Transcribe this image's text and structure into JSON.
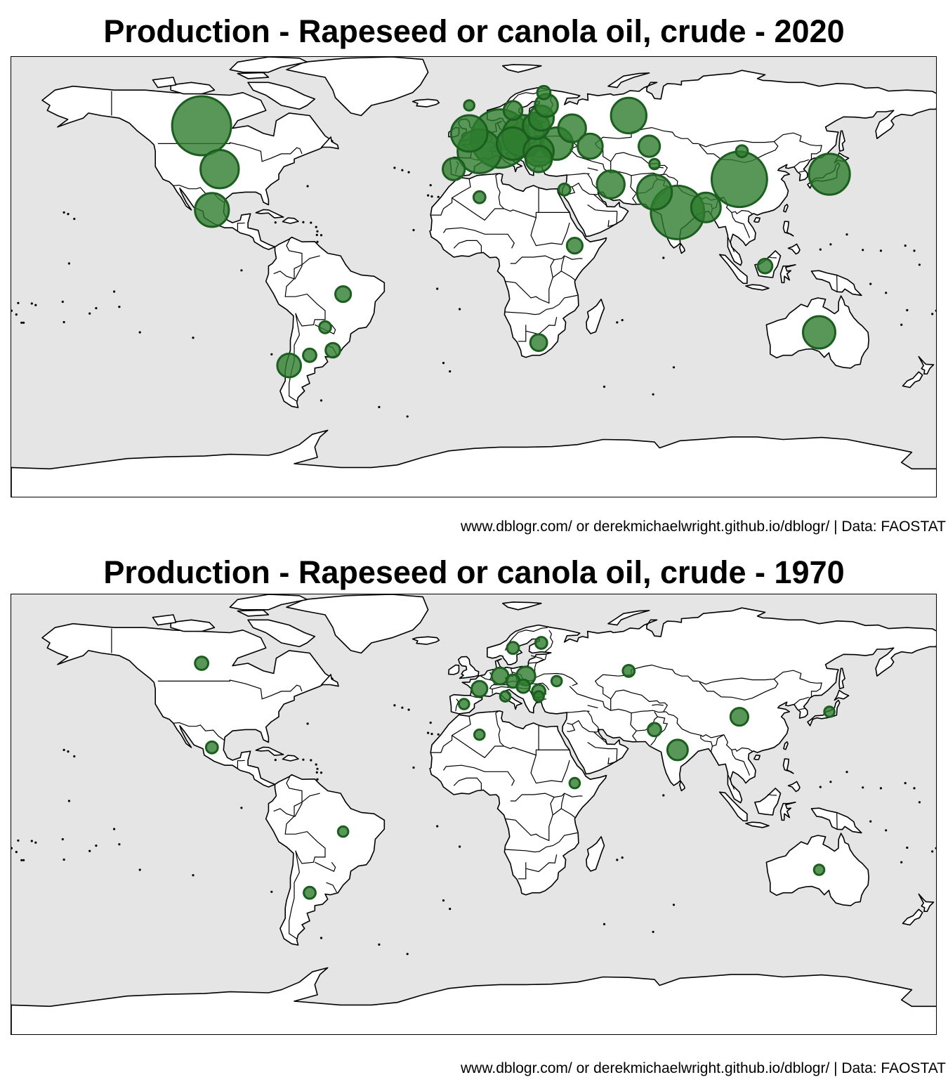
{
  "maps": [
    {
      "title": "Production - Rapeseed or canola oil, crude - 2020",
      "caption": "www.dblogr.com/ or derekmichaelwright.github.io/dblogr/ | Data: FAOSTAT",
      "colors": {
        "ocean": "#e5e5e5",
        "land": "#ffffff",
        "bubble_fill": "#2e7d2e",
        "bubble_stroke": "#1b5e20"
      }
    },
    {
      "title": "Production - Rapeseed or canola oil, crude - 1970",
      "caption": "www.dblogr.com/ or derekmichaelwright.github.io/dblogr/ | Data: FAOSTAT",
      "colors": {
        "ocean": "#e5e5e5",
        "land": "#ffffff",
        "bubble_fill": "#2e7d2e",
        "bubble_stroke": "#1b5e20"
      }
    }
  ],
  "chart_data": [
    {
      "type": "bubble-map",
      "year": "2020",
      "value_note": "relative bubble size (max = 1)",
      "points": [
        {
          "lon": -106,
          "lat": 56,
          "size": 1.0
        },
        {
          "lon": -99,
          "lat": 39,
          "size": 0.42
        },
        {
          "lon": -102,
          "lat": 23,
          "size": 0.33
        },
        {
          "lon": 10,
          "lat": 51,
          "size": 0.98
        },
        {
          "lon": 2,
          "lat": 46,
          "size": 0.55
        },
        {
          "lon": 19,
          "lat": 52,
          "size": 0.5
        },
        {
          "lon": -2,
          "lat": 53,
          "size": 0.38
        },
        {
          "lon": 15,
          "lat": 49,
          "size": 0.3
        },
        {
          "lon": 25,
          "lat": 46,
          "size": 0.26
        },
        {
          "lon": 32,
          "lat": 49,
          "size": 0.3
        },
        {
          "lon": 24,
          "lat": 56,
          "size": 0.2
        },
        {
          "lon": 26,
          "lat": 59,
          "size": 0.18
        },
        {
          "lon": 38,
          "lat": 55,
          "size": 0.22
        },
        {
          "lon": 60,
          "lat": 60,
          "size": 0.36
        },
        {
          "lon": 25,
          "lat": 43,
          "size": 0.2
        },
        {
          "lon": 45,
          "lat": 48,
          "size": 0.18
        },
        {
          "lon": 68,
          "lat": 48,
          "size": 0.13
        },
        {
          "lon": 103,
          "lat": 35,
          "size": 0.88
        },
        {
          "lon": 79,
          "lat": 22,
          "size": 0.82
        },
        {
          "lon": 70,
          "lat": 30,
          "size": 0.35
        },
        {
          "lon": 90,
          "lat": 24,
          "size": 0.25
        },
        {
          "lon": 138,
          "lat": 37,
          "size": 0.48
        },
        {
          "lon": 134,
          "lat": -25,
          "size": 0.3
        },
        {
          "lon": 53,
          "lat": 33,
          "size": 0.22
        },
        {
          "lon": -8,
          "lat": 39,
          "size": 0.14
        },
        {
          "lon": 28,
          "lat": 64,
          "size": 0.15
        },
        {
          "lon": 15,
          "lat": 62,
          "size": 0.1
        },
        {
          "lon": -72,
          "lat": -38,
          "size": 0.16
        },
        {
          "lon": -64,
          "lat": -34,
          "size": 0.05
        },
        {
          "lon": -55,
          "lat": -32,
          "size": 0.06
        },
        {
          "lon": -58,
          "lat": -23,
          "size": 0.04
        },
        {
          "lon": -51,
          "lat": -10,
          "size": 0.07
        },
        {
          "lon": 25,
          "lat": -29,
          "size": 0.08
        },
        {
          "lon": 39,
          "lat": 9,
          "size": 0.07
        },
        {
          "lon": 2,
          "lat": 28,
          "size": 0.04
        },
        {
          "lon": 35,
          "lat": 31,
          "size": 0.04
        },
        {
          "lon": 113,
          "lat": 1,
          "size": 0.06
        },
        {
          "lon": 104,
          "lat": 46,
          "size": 0.04
        },
        {
          "lon": 70,
          "lat": 41,
          "size": 0.03
        },
        {
          "lon": 27,
          "lat": 69,
          "size": 0.05
        },
        {
          "lon": -2,
          "lat": 64,
          "size": 0.03
        }
      ]
    },
    {
      "type": "bubble-map",
      "year": "1970",
      "value_note": "relative bubble size (max = 1)",
      "points": [
        {
          "lon": 103,
          "lat": 35,
          "size": 0.09
        },
        {
          "lon": 79,
          "lat": 22,
          "size": 0.12
        },
        {
          "lon": 20,
          "lat": 51,
          "size": 0.1
        },
        {
          "lon": 10,
          "lat": 51,
          "size": 0.08
        },
        {
          "lon": 2,
          "lat": 46,
          "size": 0.07
        },
        {
          "lon": -106,
          "lat": 56,
          "size": 0.05
        },
        {
          "lon": 15,
          "lat": 49,
          "size": 0.05
        },
        {
          "lon": 19,
          "lat": 47,
          "size": 0.05
        },
        {
          "lon": 25,
          "lat": 45,
          "size": 0.05
        },
        {
          "lon": 70,
          "lat": 30,
          "size": 0.05
        },
        {
          "lon": 15,
          "lat": 62,
          "size": 0.04
        },
        {
          "lon": 26,
          "lat": 64,
          "size": 0.04
        },
        {
          "lon": 60,
          "lat": 53,
          "size": 0.04
        },
        {
          "lon": -102,
          "lat": 23,
          "size": 0.04
        },
        {
          "lon": -64,
          "lat": -34,
          "size": 0.04
        },
        {
          "lon": -51,
          "lat": -10,
          "size": 0.03
        },
        {
          "lon": 39,
          "lat": 9,
          "size": 0.03
        },
        {
          "lon": 134,
          "lat": -25,
          "size": 0.03
        },
        {
          "lon": 138,
          "lat": 37,
          "size": 0.03
        },
        {
          "lon": 2,
          "lat": 28,
          "size": 0.03
        },
        {
          "lon": -4,
          "lat": 40,
          "size": 0.03
        },
        {
          "lon": 25,
          "lat": 43,
          "size": 0.03
        },
        {
          "lon": 32,
          "lat": 49,
          "size": 0.03
        },
        {
          "lon": 12,
          "lat": 43,
          "size": 0.03
        }
      ]
    }
  ]
}
